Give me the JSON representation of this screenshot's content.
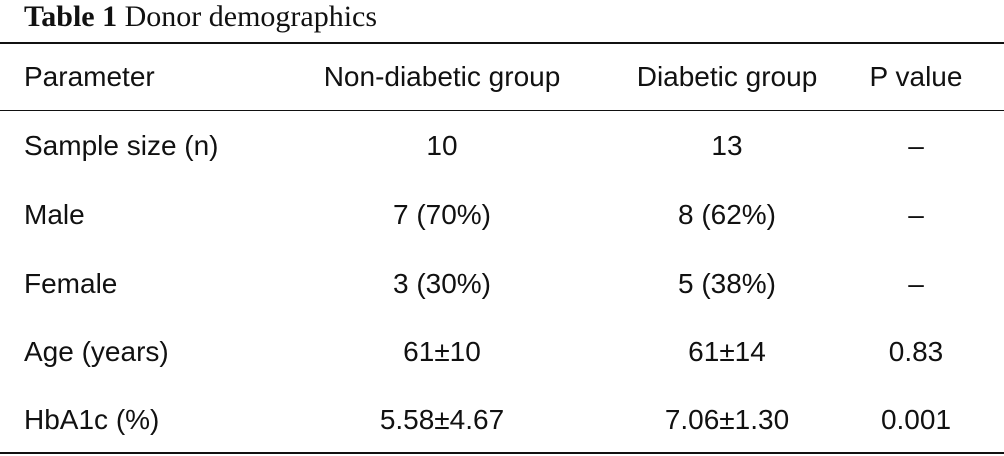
{
  "table": {
    "caption_label": "Table 1",
    "caption_text": "Donor demographics",
    "headers": [
      "Parameter",
      "Non-diabetic group",
      "Diabetic group",
      "P value"
    ],
    "rows": [
      [
        "Sample size (n)",
        "10",
        "13",
        "–"
      ],
      [
        "Male",
        "7 (70%)",
        "8 (62%)",
        "–"
      ],
      [
        "Female",
        "3 (30%)",
        "5 (38%)",
        "–"
      ],
      [
        "Age (years)",
        "61±10",
        "61±14",
        "0.83"
      ],
      [
        "HbA1c (%)",
        "5.58±4.67",
        "7.06±1.30",
        "0.001"
      ]
    ]
  }
}
